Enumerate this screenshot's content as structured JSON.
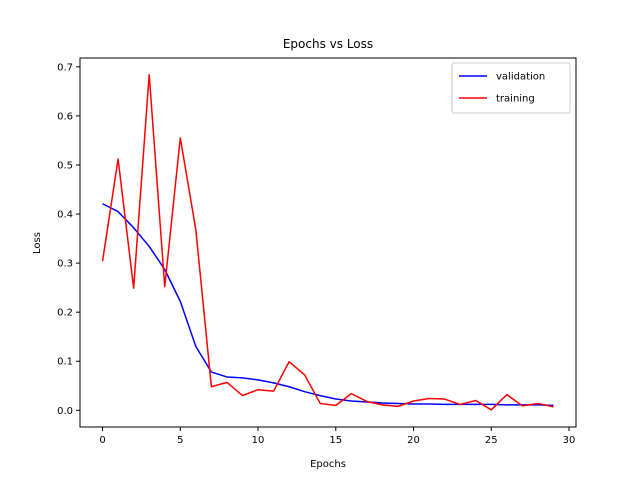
{
  "chart_data": {
    "type": "line",
    "title": "Epochs vs Loss",
    "xlabel": "Epochs",
    "ylabel": "Loss",
    "xlim": [
      -1.45,
      30.45
    ],
    "ylim": [
      -0.034,
      0.718
    ],
    "xticks": [
      0,
      5,
      10,
      15,
      20,
      25,
      30
    ],
    "yticks": [
      0.0,
      0.1,
      0.2,
      0.3,
      0.4,
      0.5,
      0.6,
      0.7
    ],
    "xtick_labels": [
      "0",
      "5",
      "10",
      "15",
      "20",
      "25",
      "30"
    ],
    "ytick_labels": [
      "0.0",
      "0.1",
      "0.2",
      "0.3",
      "0.4",
      "0.5",
      "0.6",
      "0.7"
    ],
    "grid": false,
    "legend_position": "upper-right",
    "x": [
      0,
      1,
      2,
      3,
      4,
      5,
      6,
      7,
      8,
      9,
      10,
      11,
      12,
      13,
      14,
      15,
      16,
      17,
      18,
      19,
      20,
      21,
      22,
      23,
      24,
      25,
      26,
      27,
      28,
      29
    ],
    "series": [
      {
        "name": "validation",
        "color": "#0000ff",
        "values": [
          0.421,
          0.405,
          0.372,
          0.334,
          0.287,
          0.222,
          0.13,
          0.078,
          0.068,
          0.066,
          0.062,
          0.056,
          0.048,
          0.038,
          0.03,
          0.023,
          0.019,
          0.017,
          0.015,
          0.014,
          0.013,
          0.013,
          0.012,
          0.012,
          0.012,
          0.012,
          0.011,
          0.011,
          0.011,
          0.01
        ]
      },
      {
        "name": "training",
        "color": "#ff0000",
        "values": [
          0.304,
          0.512,
          0.249,
          0.684,
          0.252,
          0.555,
          0.368,
          0.048,
          0.057,
          0.03,
          0.042,
          0.039,
          0.099,
          0.072,
          0.014,
          0.01,
          0.034,
          0.018,
          0.011,
          0.008,
          0.019,
          0.024,
          0.023,
          0.012,
          0.02,
          0.001,
          0.032,
          0.009,
          0.014,
          0.007
        ]
      }
    ]
  }
}
